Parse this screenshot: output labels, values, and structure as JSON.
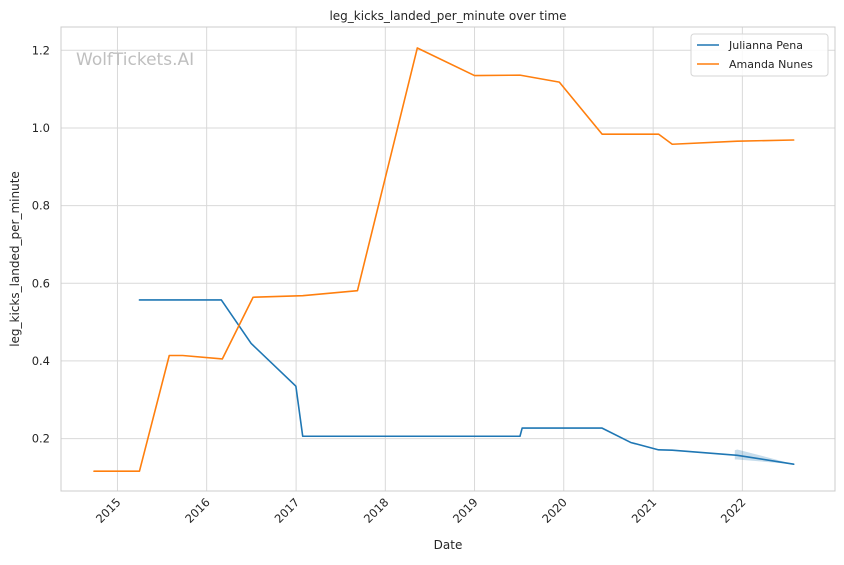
{
  "watermark": "WolfTickets.AI",
  "chart_data": {
    "type": "line",
    "title": "leg_kicks_landed_per_minute over time",
    "xlabel": "Date",
    "ylabel": "leg_kicks_landed_per_minute",
    "x_is_date": true,
    "xlim": [
      "2014-05-15",
      "2023-01-15"
    ],
    "ylim": [
      0.065,
      1.26
    ],
    "xticks": [
      {
        "value": "2015-01-01",
        "label": "2015"
      },
      {
        "value": "2016-01-01",
        "label": "2016"
      },
      {
        "value": "2017-01-01",
        "label": "2017"
      },
      {
        "value": "2018-01-01",
        "label": "2018"
      },
      {
        "value": "2019-01-01",
        "label": "2019"
      },
      {
        "value": "2020-01-01",
        "label": "2020"
      },
      {
        "value": "2021-01-01",
        "label": "2021"
      },
      {
        "value": "2022-01-01",
        "label": "2022"
      }
    ],
    "yticks": [
      {
        "value": 0.2,
        "label": "0.2"
      },
      {
        "value": 0.4,
        "label": "0.4"
      },
      {
        "value": 0.6,
        "label": "0.6"
      },
      {
        "value": 0.8,
        "label": "0.8"
      },
      {
        "value": 1.0,
        "label": "1.0"
      },
      {
        "value": 1.2,
        "label": "1.2"
      }
    ],
    "grid": true,
    "legend_position": "top-right",
    "series": [
      {
        "name": "Julianna Pena",
        "color": "#1f77b4",
        "x": [
          "2015-04-01",
          "2016-03-01",
          "2016-07-01",
          "2016-12-31",
          "2017-01-28",
          "2019-07-06",
          "2019-07-15",
          "2020-06-06",
          "2020-10-01",
          "2021-01-23",
          "2021-03-20",
          "2021-12-11",
          "2022-07-30"
        ],
        "y": [
          0.557,
          0.557,
          0.445,
          0.335,
          0.206,
          0.206,
          0.227,
          0.227,
          0.19,
          0.171,
          0.17,
          0.157,
          0.134
        ]
      },
      {
        "name": "Amanda Nunes",
        "color": "#ff7f0e",
        "x": [
          "2014-09-27",
          "2015-04-01",
          "2015-08-01",
          "2015-09-25",
          "2016-03-05",
          "2016-07-09",
          "2017-01-28",
          "2017-09-09",
          "2018-05-12",
          "2019-01-01",
          "2019-07-06",
          "2019-12-14",
          "2020-06-06",
          "2021-01-23",
          "2021-03-20",
          "2021-12-11",
          "2022-07-30"
        ],
        "y": [
          0.116,
          0.116,
          0.414,
          0.414,
          0.405,
          0.564,
          0.568,
          0.581,
          1.206,
          1.135,
          1.136,
          1.118,
          0.984,
          0.984,
          0.958,
          0.966,
          0.969
        ]
      }
    ],
    "confidence_bands": [
      {
        "series": "Julianna Pena",
        "color": "#1f77b4",
        "x": [
          "2021-12-01",
          "2021-12-11",
          "2022-07-30"
        ],
        "upper": [
          0.17,
          0.172,
          0.134
        ],
        "lower": [
          0.146,
          0.146,
          0.134
        ]
      }
    ]
  }
}
